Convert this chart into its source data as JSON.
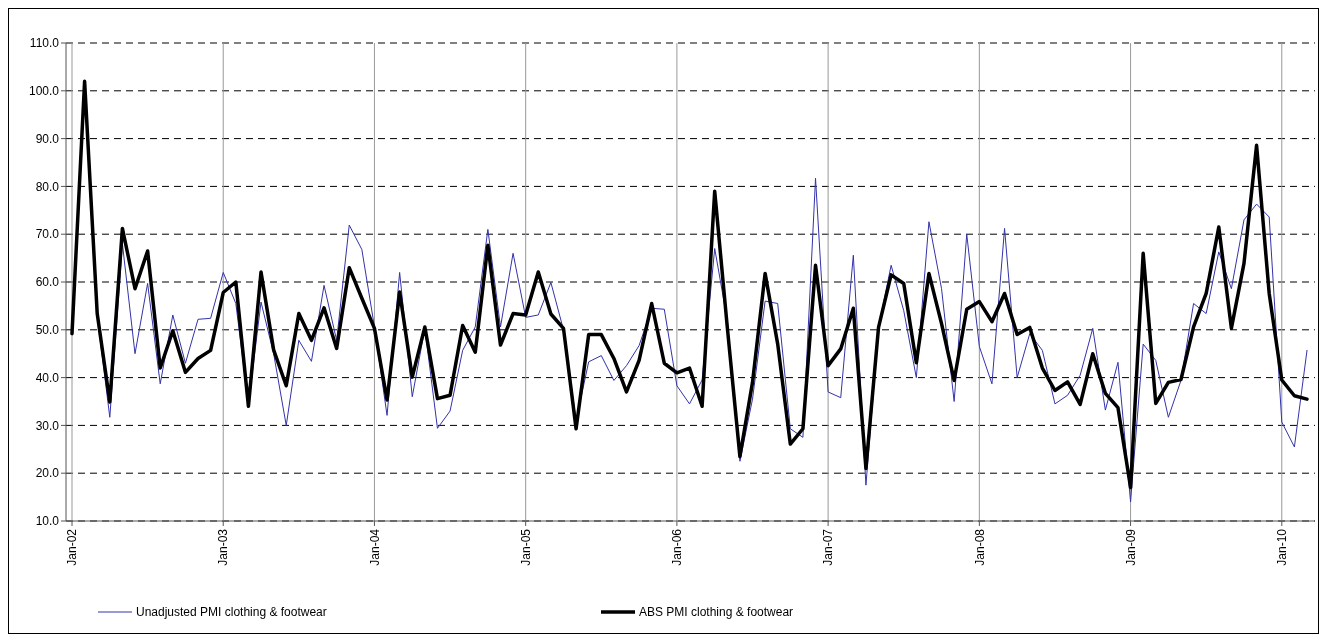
{
  "chart_data": {
    "type": "line",
    "categories": [
      "Jan-02",
      null,
      null,
      null,
      null,
      null,
      null,
      null,
      null,
      null,
      null,
      null,
      "Jan-03",
      null,
      null,
      null,
      null,
      null,
      null,
      null,
      null,
      null,
      null,
      null,
      "Jan-04",
      null,
      null,
      null,
      null,
      null,
      null,
      null,
      null,
      null,
      null,
      null,
      "Jan-05",
      null,
      null,
      null,
      null,
      null,
      null,
      null,
      null,
      null,
      null,
      null,
      "Jan-06",
      null,
      null,
      null,
      null,
      null,
      null,
      null,
      null,
      null,
      null,
      null,
      "Jan-07",
      null,
      null,
      null,
      null,
      null,
      null,
      null,
      null,
      null,
      null,
      null,
      "Jan-08",
      null,
      null,
      null,
      null,
      null,
      null,
      null,
      null,
      null,
      null,
      null,
      "Jan-09",
      null,
      null,
      null,
      null,
      null,
      null,
      null,
      null,
      null,
      null,
      null,
      "Jan-10",
      null,
      null
    ],
    "series": [
      {
        "name": "Unadjusted PMI clothing & footwear",
        "color": "#3333aa",
        "values": [
          null,
          null,
          53,
          31.7,
          68,
          45,
          59.7,
          38.7,
          53.1,
          43,
          52.2,
          52.4,
          62,
          55.5,
          34.5,
          55.8,
          45,
          30,
          47.8,
          43.4,
          59.3,
          47.8,
          71.9,
          66.8,
          50.6,
          32.1,
          62,
          36,
          50.3,
          29.4,
          33,
          45.7,
          50.6,
          71,
          50.6,
          66,
          52.6,
          53.1,
          59.9,
          50,
          31,
          43.3,
          44.6,
          39.4,
          42.5,
          46.7,
          54.5,
          54.3,
          38.3,
          34.5,
          39.5,
          67,
          52,
          22.5,
          35.5,
          56,
          55.5,
          29.3,
          27.5,
          81.7,
          37,
          35.8,
          65.6,
          17.5,
          50.5,
          63.5,
          54,
          40,
          72.6,
          58.6,
          35,
          70,
          46.5,
          38.7,
          71.2,
          40,
          49.2,
          45.7,
          34.5,
          36.3,
          40.5,
          50.3,
          33.2,
          43.2,
          14,
          47,
          43.6,
          31.7,
          39.4,
          55.5,
          53.4,
          66.3,
          58.6,
          73,
          76.3,
          73.6,
          30.7,
          25.5,
          45.7
        ]
      },
      {
        "name": "ABS PMI clothing & footwear",
        "color": "#000000",
        "values": [
          49.2,
          102,
          53.4,
          34.9,
          71.2,
          58.6,
          66.5,
          42,
          49.8,
          41.1,
          44,
          45.7,
          57.8,
          60,
          34,
          62.1,
          45.8,
          38.3,
          53.4,
          47.8,
          54.6,
          46.1,
          63,
          56.6,
          50.3,
          35.3,
          57.9,
          40.1,
          50.6,
          35.6,
          36.3,
          50.9,
          45.3,
          67.7,
          46.8,
          53.4,
          53.1,
          62.1,
          53.3,
          50.3,
          29.3,
          49,
          49,
          44,
          37,
          43.6,
          55.5,
          43,
          41,
          42,
          34,
          79,
          50.5,
          23.5,
          39,
          61.8,
          47,
          26.1,
          29.3,
          63.5,
          42.5,
          46,
          54.5,
          21,
          50.5,
          61.5,
          59.7,
          43.1,
          61.8,
          51.3,
          39.4,
          54.3,
          55.9,
          51.7,
          57.6,
          49,
          50.5,
          42,
          37.3,
          39.1,
          34.4,
          45,
          36.7,
          33.7,
          17,
          66,
          34.6,
          39,
          39.6,
          50.6,
          57.6,
          71.5,
          50.3,
          63.9,
          88.6,
          57.6,
          39.5,
          36.2,
          35.5
        ]
      }
    ],
    "ylim": [
      10,
      110
    ],
    "yticks": [
      {
        "value": 10,
        "label": "10.0"
      },
      {
        "value": 20,
        "label": "20.0"
      },
      {
        "value": 30,
        "label": "30.0"
      },
      {
        "value": 40,
        "label": "40.0"
      },
      {
        "value": 50,
        "label": "50.0"
      },
      {
        "value": 60,
        "label": "60.0"
      },
      {
        "value": 70,
        "label": "70.0"
      },
      {
        "value": 80,
        "label": "80.0"
      },
      {
        "value": 90,
        "label": "90.0"
      },
      {
        "value": 100,
        "label": "100.0"
      },
      {
        "value": 110,
        "label": "110.0"
      }
    ],
    "grid": true,
    "legend": "bottom",
    "marker": "none",
    "line_style": "solid"
  }
}
